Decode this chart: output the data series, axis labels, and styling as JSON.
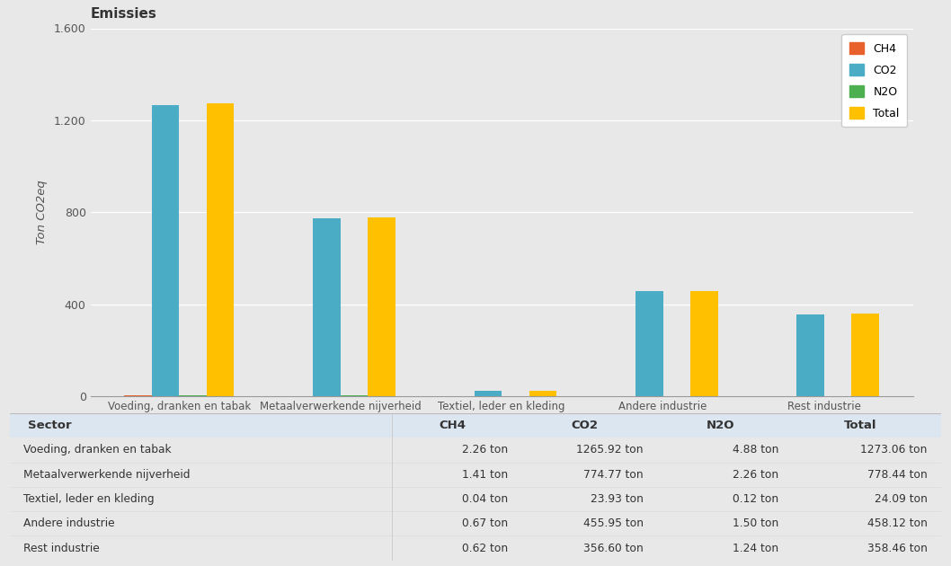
{
  "title": "Emissies",
  "xlabel": "Sector",
  "ylabel": "Ton CO2eq",
  "bg_color": "#e8e8e8",
  "table_bg": "#ffffff",
  "categories": [
    "Voeding, dranken en tabak",
    "Metaalverwerkende nijverheid",
    "Textiel, leder en kleding",
    "Andere industrie",
    "Rest industrie"
  ],
  "series": {
    "CH4": [
      2.26,
      1.41,
      0.04,
      0.67,
      0.62
    ],
    "CO2": [
      1265.92,
      774.77,
      23.93,
      455.95,
      356.6
    ],
    "N2O": [
      4.88,
      2.26,
      0.12,
      1.5,
      1.24
    ],
    "Total": [
      1273.06,
      778.44,
      24.09,
      458.12,
      358.46
    ]
  },
  "colors": {
    "CH4": "#e8612c",
    "CO2": "#4bacc6",
    "N2O": "#4caf50",
    "Total": "#ffc000"
  },
  "ylim": [
    0,
    1600
  ],
  "yticks": [
    0,
    400,
    800,
    1200,
    1600
  ],
  "ytick_labels": [
    "0",
    "400",
    "800",
    "1.200",
    "1.600"
  ],
  "table_headers": [
    "Sector",
    "CH4",
    "CO2",
    "N2O",
    "Total"
  ],
  "table_data": [
    [
      "Voeding, dranken en tabak",
      "2.26 ton",
      "1265.92 ton",
      "4.88 ton",
      "1273.06 ton"
    ],
    [
      "Metaalverwerkende nijverheid",
      "1.41 ton",
      "774.77 ton",
      "2.26 ton",
      "778.44 ton"
    ],
    [
      "Textiel, leder en kleding",
      "0.04 ton",
      "23.93 ton",
      "0.12 ton",
      "24.09 ton"
    ],
    [
      "Andere industrie",
      "0.67 ton",
      "455.95 ton",
      "1.50 ton",
      "458.12 ton"
    ],
    [
      "Rest industrie",
      "0.62 ton",
      "356.60 ton",
      "1.24 ton",
      "358.46 ton"
    ]
  ],
  "header_bg": "#dce6f1",
  "series_order": [
    "CH4",
    "CO2",
    "N2O",
    "Total"
  ]
}
